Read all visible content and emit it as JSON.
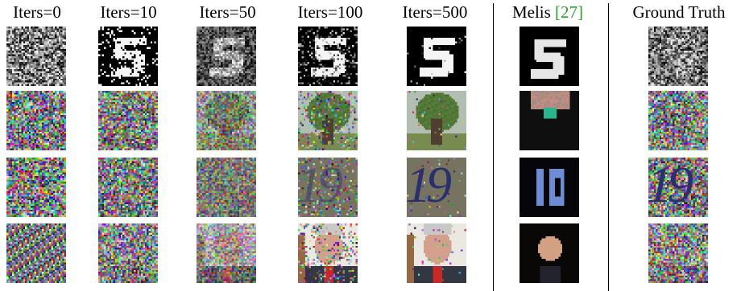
{
  "figure": {
    "headers": [
      {
        "label": "Iters=0"
      },
      {
        "label": "Iters=10"
      },
      {
        "label": "Iters=50"
      },
      {
        "label": "Iters=100"
      },
      {
        "label": "Iters=500"
      },
      {
        "label": "Melis ",
        "citation": "[27]"
      },
      {
        "label": "Ground Truth"
      }
    ],
    "rows": [
      {
        "subject": "handwritten digit 5"
      },
      {
        "subject": "tree"
      },
      {
        "subject": "house number 19",
        "digits": "19"
      },
      {
        "subject": "face of a man in a suit"
      }
    ],
    "colors": {
      "citation": "#2a9d2a",
      "separator": "#000000"
    }
  }
}
